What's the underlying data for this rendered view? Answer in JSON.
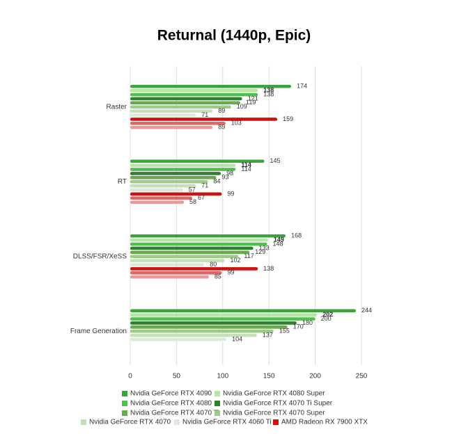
{
  "chart_data": {
    "type": "bar",
    "orientation": "horizontal",
    "title": "Returnal (1440p, Epic)",
    "categories": [
      "Raster",
      "RT",
      "DLSS/FSR/XeSS",
      "Frame Generation"
    ],
    "xlim": [
      0,
      250
    ],
    "xticks": [
      0,
      50,
      100,
      150,
      200,
      250
    ],
    "grid": true,
    "legend": "bottom",
    "series": [
      {
        "name": "Nvidia GeForce RTX 4090",
        "color": "#3da33d",
        "values": [
          174,
          145,
          168,
          244
        ]
      },
      {
        "name": "Nvidia GeForce RTX 4080 Super",
        "color": "#b5e6a4",
        "label_color": "#111111",
        "values": [
          138,
          114,
          149,
          202
        ]
      },
      {
        "name": "Nvidia GeForce RTX 4080",
        "color": "#52be52",
        "values": [
          138,
          114,
          148,
          200
        ]
      },
      {
        "name": "Nvidia GeForce RTX 4070 Ti Super",
        "color": "#2f7f2f",
        "values": [
          121,
          98,
          133,
          180
        ]
      },
      {
        "name": "Nvidia GeForce RTX 4070 Ti",
        "color": "#6aa84f",
        "values": [
          119,
          93,
          129,
          170
        ]
      },
      {
        "name": "Nvidia GeForce RTX 4070 Super",
        "color": "#9ccb88",
        "values": [
          109,
          84,
          117,
          155
        ]
      },
      {
        "name": "Nvidia GeForce RTX 4070",
        "color": "#c5dfba",
        "values": [
          89,
          71,
          102,
          137
        ]
      },
      {
        "name": "Nvidia GeForce RTX 4060 Ti",
        "color": "#dde9d8",
        "values": [
          71,
          57,
          80,
          104
        ]
      },
      {
        "name": "AMD Radeon RX 7900 XTX",
        "color": "#cc1111",
        "values": [
          159,
          99,
          138,
          null
        ]
      },
      {
        "color": "#e06666",
        "values": [
          103,
          67,
          99,
          null
        ]
      },
      {
        "color": "#ea9999",
        "values": [
          89,
          58,
          85,
          null
        ]
      }
    ]
  }
}
